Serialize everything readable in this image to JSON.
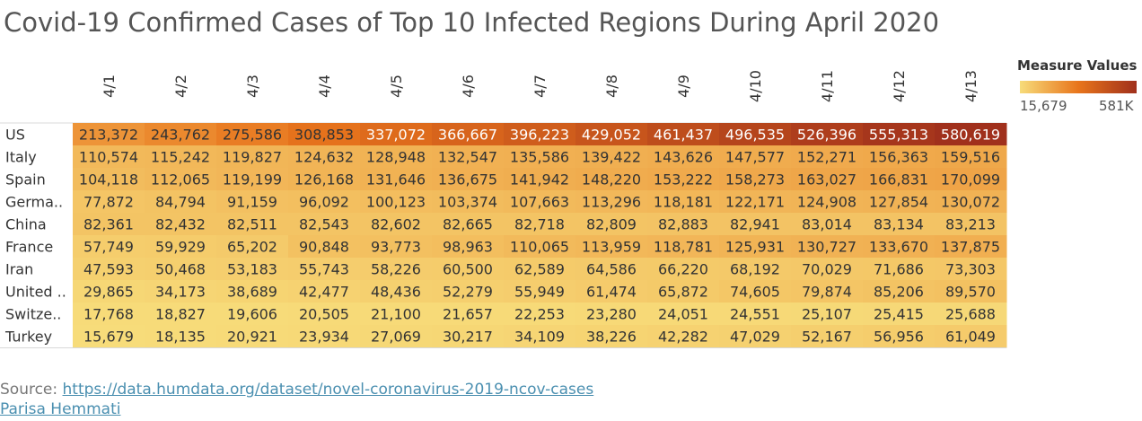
{
  "title": "Covid-19 Confirmed Cases of Top 10 Infected Regions During April 2020",
  "legend": {
    "title": "Measure Values",
    "min_label": "15,679",
    "max_label": "581K",
    "color_low": "#f7dc7a",
    "color_mid": "#e8751c",
    "color_high": "#a0301c"
  },
  "footer": {
    "source_prefix": "Source: ",
    "source_link": "https://data.humdata.org/dataset/novel-coronavirus-2019-ncov-cases",
    "author": "Parisa Hemmati"
  },
  "chart_data": {
    "type": "heatmap",
    "title": "Covid-19 Confirmed Cases of Top 10 Infected Regions During April 2020",
    "x": [
      "4/1",
      "4/2",
      "4/3",
      "4/4",
      "4/5",
      "4/6",
      "4/7",
      "4/8",
      "4/9",
      "4/10",
      "4/11",
      "4/12",
      "4/13"
    ],
    "y": [
      "US",
      "Italy",
      "Spain",
      "Germa..",
      "China",
      "France",
      "Iran",
      "United ..",
      "Switze..",
      "Turkey"
    ],
    "values": [
      [
        213372,
        243762,
        275586,
        308853,
        337072,
        366667,
        396223,
        429052,
        461437,
        496535,
        526396,
        555313,
        580619
      ],
      [
        110574,
        115242,
        119827,
        124632,
        128948,
        132547,
        135586,
        139422,
        143626,
        147577,
        152271,
        156363,
        159516
      ],
      [
        104118,
        112065,
        119199,
        126168,
        131646,
        136675,
        141942,
        148220,
        153222,
        158273,
        163027,
        166831,
        170099
      ],
      [
        77872,
        84794,
        91159,
        96092,
        100123,
        103374,
        107663,
        113296,
        118181,
        122171,
        124908,
        127854,
        130072
      ],
      [
        82361,
        82432,
        82511,
        82543,
        82602,
        82665,
        82718,
        82809,
        82883,
        82941,
        83014,
        83134,
        83213
      ],
      [
        57749,
        59929,
        65202,
        90848,
        93773,
        98963,
        110065,
        113959,
        118781,
        125931,
        130727,
        133670,
        137875
      ],
      [
        47593,
        50468,
        53183,
        55743,
        58226,
        60500,
        62589,
        64586,
        66220,
        68192,
        70029,
        71686,
        73303
      ],
      [
        29865,
        34173,
        38689,
        42477,
        48436,
        52279,
        55949,
        61474,
        65872,
        74605,
        79874,
        85206,
        89570
      ],
      [
        17768,
        18827,
        19606,
        20505,
        21100,
        21657,
        22253,
        23280,
        24051,
        24551,
        25107,
        25415,
        25688
      ],
      [
        15679,
        18135,
        20921,
        23934,
        27069,
        30217,
        34109,
        38226,
        42282,
        47029,
        52167,
        56956,
        61049
      ]
    ],
    "value_range": [
      15679,
      580619
    ]
  }
}
